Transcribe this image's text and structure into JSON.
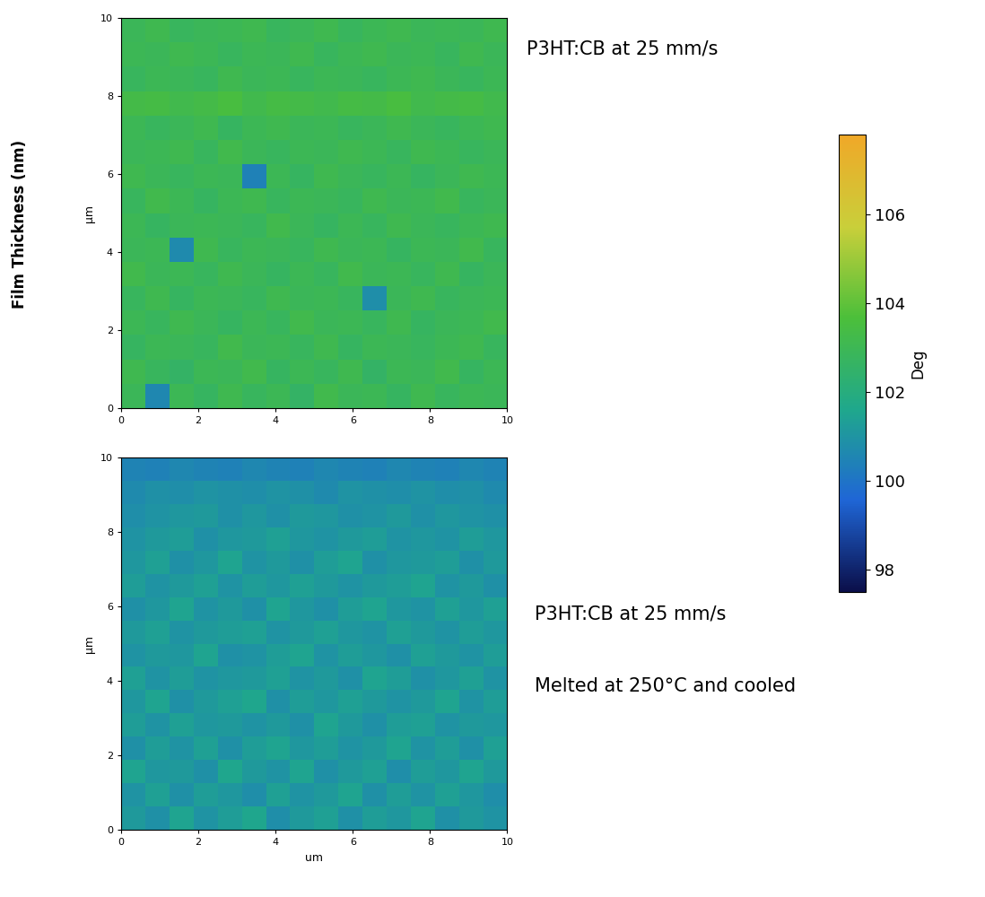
{
  "chart_data": [
    {
      "type": "heatmap",
      "ylabel": "µm",
      "xlim": [
        0,
        10
      ],
      "ylim": [
        0,
        10
      ],
      "xticks": [
        0,
        2,
        4,
        6,
        8,
        10
      ],
      "yticks": [
        0,
        2,
        4,
        6,
        8,
        10
      ],
      "annotations": [
        "P3HT:CB at 25 mm/s"
      ],
      "cells": [
        [
          102.9,
          100.6,
          103.0,
          102.7,
          103.1,
          102.8,
          103.0,
          102.6,
          103.2,
          102.9,
          103.0,
          102.7,
          103.1,
          102.8,
          103.0,
          102.9
        ],
        [
          103.1,
          102.8,
          102.6,
          103.0,
          102.9,
          103.2,
          102.7,
          103.0,
          102.8,
          103.1,
          102.6,
          103.0,
          102.9,
          103.2,
          102.7,
          103.0
        ],
        [
          102.7,
          103.0,
          102.9,
          102.8,
          103.2,
          102.9,
          103.0,
          102.8,
          103.1,
          102.7,
          103.0,
          102.9,
          102.8,
          103.0,
          103.1,
          102.8
        ],
        [
          103.0,
          102.8,
          103.1,
          102.9,
          102.7,
          103.0,
          102.8,
          103.2,
          102.9,
          103.0,
          102.8,
          103.1,
          102.7,
          102.9,
          103.0,
          103.2
        ],
        [
          102.8,
          103.1,
          102.7,
          103.0,
          102.9,
          102.8,
          103.1,
          102.9,
          103.0,
          102.8,
          100.8,
          102.9,
          103.1,
          102.8,
          102.9,
          103.0
        ],
        [
          103.2,
          102.9,
          103.0,
          102.8,
          103.1,
          102.9,
          102.7,
          103.0,
          102.8,
          103.2,
          102.9,
          103.0,
          102.8,
          103.1,
          102.7,
          102.9
        ],
        [
          102.9,
          103.0,
          100.7,
          103.1,
          102.8,
          103.0,
          102.9,
          102.8,
          103.1,
          102.9,
          103.0,
          102.7,
          103.0,
          102.9,
          103.2,
          102.8
        ],
        [
          103.0,
          102.7,
          102.9,
          103.0,
          102.9,
          102.8,
          103.2,
          102.9,
          102.7,
          103.0,
          102.8,
          103.1,
          102.9,
          102.8,
          103.0,
          103.1
        ],
        [
          102.8,
          103.2,
          103.0,
          102.7,
          103.0,
          103.1,
          102.8,
          103.0,
          102.9,
          102.8,
          103.1,
          102.9,
          103.0,
          103.2,
          102.8,
          102.9
        ],
        [
          103.1,
          102.9,
          102.8,
          103.0,
          102.9,
          100.4,
          103.0,
          102.7,
          103.1,
          102.9,
          102.8,
          103.0,
          102.7,
          102.9,
          103.1,
          103.0
        ],
        [
          102.9,
          103.0,
          103.1,
          102.8,
          103.2,
          102.9,
          102.8,
          103.0,
          102.9,
          103.1,
          103.0,
          102.8,
          103.1,
          103.0,
          102.8,
          102.9
        ],
        [
          103.0,
          102.8,
          102.9,
          103.1,
          102.7,
          103.0,
          103.1,
          102.9,
          103.0,
          102.8,
          102.9,
          103.1,
          102.9,
          102.8,
          103.0,
          103.1
        ],
        [
          103.3,
          103.4,
          103.2,
          103.3,
          103.5,
          103.2,
          103.4,
          103.3,
          103.2,
          103.4,
          103.3,
          103.5,
          103.2,
          103.3,
          103.4,
          103.2
        ],
        [
          102.8,
          103.0,
          102.9,
          102.8,
          103.1,
          102.9,
          103.0,
          102.8,
          103.0,
          102.9,
          102.8,
          103.0,
          103.1,
          102.9,
          102.8,
          103.0
        ],
        [
          103.0,
          102.9,
          103.1,
          103.0,
          102.8,
          103.0,
          102.9,
          103.1,
          102.8,
          103.0,
          103.1,
          102.9,
          103.0,
          102.8,
          103.1,
          102.9
        ],
        [
          102.9,
          103.1,
          102.8,
          102.9,
          103.0,
          103.1,
          102.8,
          102.9,
          103.1,
          102.8,
          103.0,
          103.1,
          102.9,
          103.0,
          102.9,
          103.1
        ]
      ]
    },
    {
      "type": "heatmap",
      "xlabel": "um",
      "ylabel": "µm",
      "xlim": [
        0,
        10
      ],
      "ylim": [
        0,
        10
      ],
      "xticks": [
        0,
        2,
        4,
        6,
        8,
        10
      ],
      "yticks": [
        0,
        2,
        4,
        6,
        8,
        10
      ],
      "annotations": [
        "P3HT:CB at 25 mm/s",
        "Melted at 250°C and cooled"
      ],
      "cells": [
        [
          101.2,
          100.9,
          101.5,
          101.0,
          101.3,
          101.6,
          100.8,
          101.2,
          101.4,
          100.9,
          101.3,
          101.1,
          101.5,
          100.9,
          101.2,
          101.0
        ],
        [
          101.0,
          101.4,
          100.9,
          101.3,
          101.1,
          100.8,
          101.4,
          101.0,
          101.2,
          101.5,
          100.9,
          101.3,
          101.0,
          101.4,
          101.1,
          100.8
        ],
        [
          101.5,
          101.1,
          101.2,
          100.9,
          101.6,
          101.2,
          101.0,
          101.5,
          100.9,
          101.2,
          101.4,
          100.8,
          101.3,
          101.1,
          101.5,
          101.2
        ],
        [
          100.9,
          101.3,
          101.0,
          101.4,
          100.9,
          101.3,
          101.5,
          101.1,
          101.3,
          101.0,
          101.2,
          101.5,
          101.0,
          101.3,
          100.9,
          101.4
        ],
        [
          101.3,
          101.0,
          101.4,
          101.1,
          101.2,
          101.0,
          101.2,
          100.9,
          101.5,
          101.2,
          100.9,
          101.3,
          101.4,
          101.0,
          101.2,
          101.1
        ],
        [
          101.1,
          101.5,
          100.9,
          101.2,
          101.4,
          101.6,
          100.9,
          101.3,
          101.1,
          101.4,
          101.2,
          101.0,
          101.2,
          101.5,
          101.0,
          101.3
        ],
        [
          101.4,
          101.0,
          101.3,
          101.0,
          101.1,
          101.2,
          101.4,
          101.0,
          101.2,
          100.9,
          101.5,
          101.3,
          100.9,
          101.1,
          101.4,
          101.0
        ],
        [
          101.0,
          101.2,
          101.1,
          101.5,
          100.9,
          101.0,
          101.3,
          101.5,
          101.0,
          101.3,
          101.1,
          100.9,
          101.4,
          101.2,
          101.0,
          101.3
        ],
        [
          101.2,
          101.4,
          101.0,
          101.2,
          101.3,
          101.4,
          101.0,
          101.2,
          101.4,
          101.1,
          101.0,
          101.4,
          101.2,
          101.0,
          101.3,
          101.1
        ],
        [
          100.9,
          101.1,
          101.5,
          101.0,
          101.2,
          100.9,
          101.5,
          101.1,
          100.9,
          101.3,
          101.5,
          101.1,
          101.0,
          101.4,
          101.1,
          101.4
        ],
        [
          101.3,
          101.0,
          101.2,
          101.4,
          101.0,
          101.3,
          101.1,
          101.4,
          101.2,
          101.0,
          101.2,
          101.3,
          101.5,
          101.0,
          101.2,
          100.9
        ],
        [
          101.1,
          101.4,
          100.9,
          101.1,
          101.5,
          101.0,
          101.2,
          100.9,
          101.3,
          101.5,
          100.9,
          101.1,
          101.2,
          101.3,
          100.9,
          101.2
        ],
        [
          101.0,
          101.2,
          101.3,
          100.9,
          101.1,
          101.2,
          101.4,
          101.1,
          101.0,
          101.2,
          101.3,
          101.0,
          101.1,
          101.0,
          101.3,
          101.1
        ],
        [
          100.8,
          101.0,
          101.1,
          101.2,
          100.9,
          101.1,
          100.9,
          101.2,
          101.1,
          100.9,
          101.0,
          101.2,
          100.9,
          101.1,
          101.0,
          100.9
        ],
        [
          100.7,
          100.9,
          100.8,
          101.0,
          100.9,
          100.8,
          101.0,
          100.9,
          100.7,
          101.0,
          100.9,
          100.8,
          101.0,
          100.8,
          100.9,
          100.7
        ],
        [
          100.5,
          100.4,
          100.6,
          100.5,
          100.4,
          100.6,
          100.5,
          100.4,
          100.6,
          100.5,
          100.4,
          100.6,
          100.5,
          100.4,
          100.6,
          100.5
        ]
      ]
    }
  ],
  "figure": {
    "ylabel": "Film Thickness (nm)",
    "colorbar": {
      "label": "Deg",
      "range": [
        97.5,
        107.8
      ],
      "ticks": [
        98,
        100,
        102,
        104,
        106
      ]
    }
  }
}
